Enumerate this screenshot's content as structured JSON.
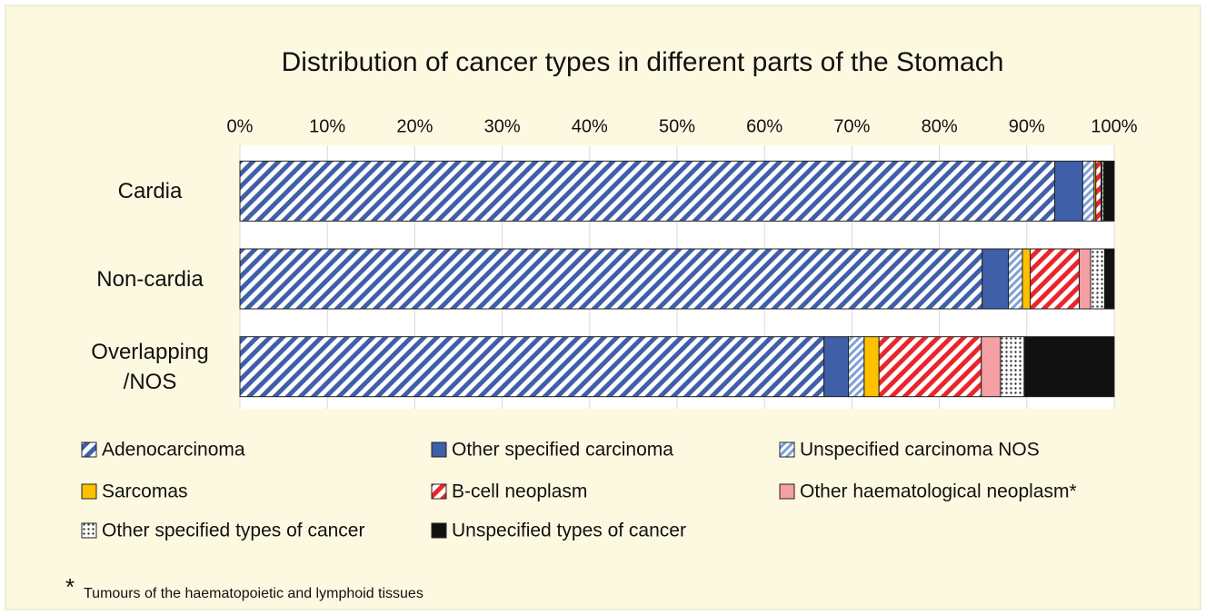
{
  "chart_data": {
    "type": "stacked-barh",
    "title": "Distribution of cancer types in different parts of the Stomach",
    "categories": [
      "Cardia",
      "Non-cardia",
      "Overlapping /NOS"
    ],
    "series": [
      {
        "name": "Adenocarcinoma",
        "color": "#3f5fa8",
        "pattern": "stripes",
        "values": [
          93.2,
          84.9,
          66.8
        ]
      },
      {
        "name": "Other specified carcinoma",
        "color": "#3f5fa8",
        "pattern": "solid",
        "values": [
          3.2,
          3.0,
          2.8
        ]
      },
      {
        "name": "Unspecified carcinoma NOS",
        "color": "#7fa0d8",
        "pattern": "fine-stripes",
        "values": [
          1.3,
          1.6,
          1.8
        ]
      },
      {
        "name": "Sarcomas",
        "color": "#ffc000",
        "pattern": "solid",
        "values": [
          0.2,
          0.9,
          1.7
        ]
      },
      {
        "name": "B-cell neoplasm",
        "color": "#e8262b",
        "pattern": "stripes",
        "values": [
          0.6,
          5.6,
          11.7
        ]
      },
      {
        "name": "Other haematological neoplasm*",
        "color": "#f4a0a4",
        "pattern": "solid",
        "values": [
          0.1,
          1.3,
          2.2
        ]
      },
      {
        "name": "Other specified types of cancer",
        "color": "#333333",
        "pattern": "dots",
        "values": [
          0.2,
          1.6,
          2.7
        ]
      },
      {
        "name": "Unspecified types of cancer",
        "color": "#111111",
        "pattern": "solid",
        "values": [
          1.2,
          1.1,
          10.3
        ]
      }
    ],
    "xlim": [
      0,
      100
    ],
    "xticks": [
      {
        "value": 0,
        "label": "0%"
      },
      {
        "value": 10,
        "label": "10%"
      },
      {
        "value": 20,
        "label": "20%"
      },
      {
        "value": 30,
        "label": "30%"
      },
      {
        "value": 40,
        "label": "40%"
      },
      {
        "value": 50,
        "label": "50%"
      },
      {
        "value": 60,
        "label": "60%"
      },
      {
        "value": 70,
        "label": "70%"
      },
      {
        "value": 80,
        "label": "80%"
      },
      {
        "value": 90,
        "label": "90%"
      },
      {
        "value": 100,
        "label": "100%"
      }
    ],
    "grid": true,
    "legend": "bottom",
    "footnote": {
      "symbol": "*",
      "text": "Tumours of the haematopoietic and lymphoid tissues"
    }
  }
}
